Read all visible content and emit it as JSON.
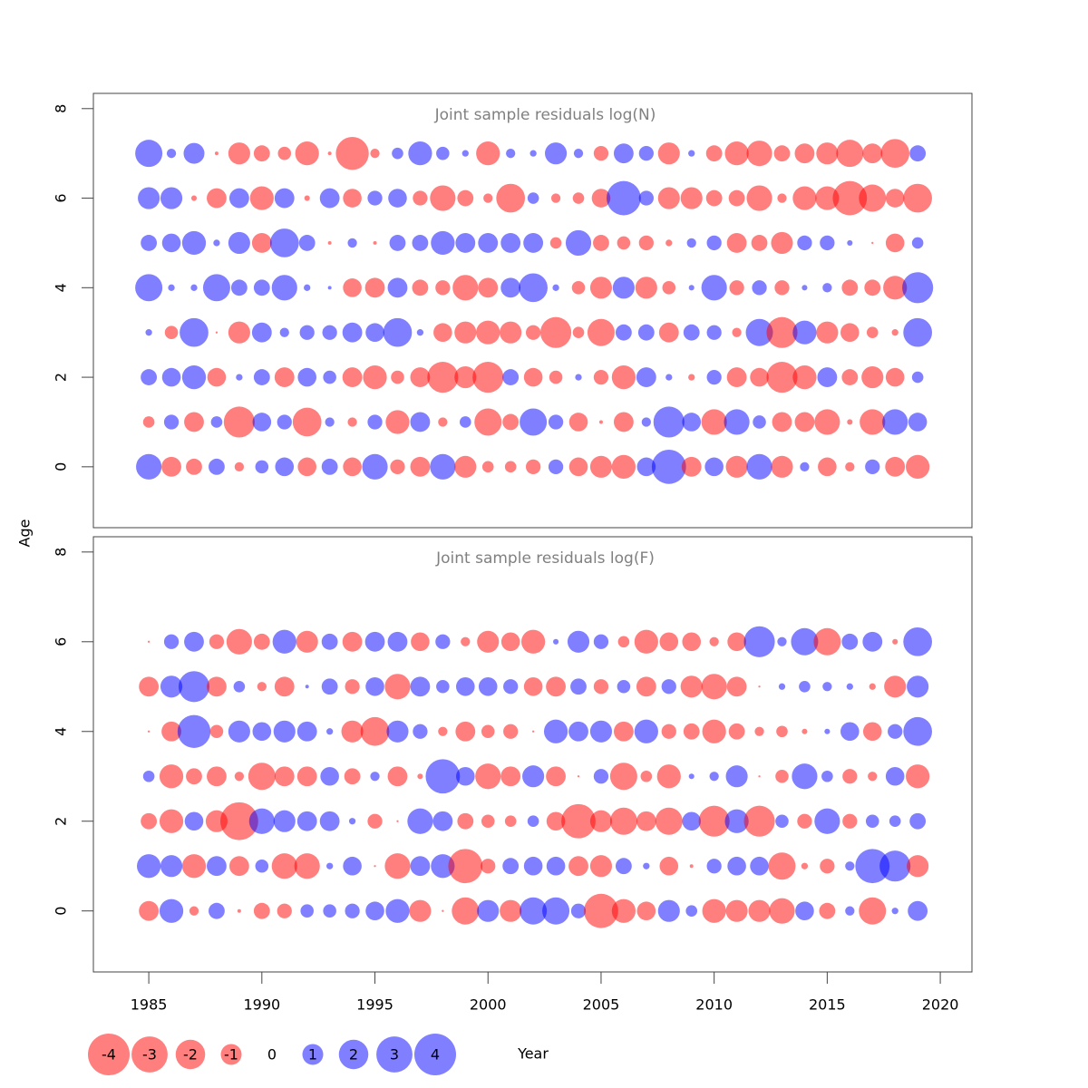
{
  "chart_data": {
    "type": "bubble",
    "xlabel": "Year",
    "ylabel": "Age",
    "colors": {
      "negative": "#ff0000",
      "positive": "#0000ff"
    },
    "legend": [
      -4,
      -3,
      -2,
      -1,
      0,
      1,
      2,
      3,
      4
    ],
    "xlim": [
      1982.55,
      2021.4
    ],
    "xticks": [
      1985,
      1990,
      1995,
      2000,
      2005,
      2010,
      2015,
      2020
    ],
    "years": [
      1985,
      1986,
      1987,
      1988,
      1989,
      1990,
      1991,
      1992,
      1993,
      1994,
      1995,
      1996,
      1997,
      1998,
      1999,
      2000,
      2001,
      2002,
      2003,
      2004,
      2005,
      2006,
      2007,
      2008,
      2009,
      2010,
      2011,
      2012,
      2013,
      2014,
      2015,
      2016,
      2017,
      2018,
      2019
    ],
    "panels": [
      {
        "title": "Joint sample residuals log(N)",
        "ylim": [
          -1.36,
          8.34
        ],
        "yticks": [
          0,
          2,
          4,
          6,
          8
        ],
        "ages": [
          0,
          1,
          2,
          3,
          4,
          5,
          6,
          7
        ],
        "values": [
          [
            1.5,
            -0.9,
            -0.6,
            0.6,
            -0.2,
            0.4,
            0.8,
            -0.8,
            0.6,
            -0.8,
            1.5,
            -0.5,
            -0.9,
            1.5,
            -1.1,
            -0.3,
            -0.3,
            -0.5,
            0.5,
            -0.8,
            -1.1,
            -1.3,
            0.8,
            2.7,
            -0.9,
            0.8,
            -1.1,
            1.5,
            -1.1,
            0.2,
            -0.8,
            -0.2,
            0.5,
            -0.9,
            -1.3
          ],
          [
            -0.3,
            0.5,
            -0.9,
            0.3,
            -2.2,
            0.8,
            0.5,
            -1.9,
            0.2,
            -0.2,
            0.5,
            -1.3,
            0.9,
            -0.2,
            0.3,
            -1.7,
            -0.6,
            1.7,
            0.5,
            -0.8,
            -0.03,
            -0.9,
            0.2,
            2.2,
            0.8,
            -1.5,
            1.5,
            0.4,
            -0.9,
            -0.9,
            -1.5,
            -0.07,
            -1.5,
            1.5,
            0.8
          ],
          [
            0.6,
            0.8,
            1.3,
            -0.8,
            0.1,
            0.6,
            -0.9,
            0.8,
            0.4,
            -0.9,
            -1.3,
            -0.4,
            -0.9,
            -2.2,
            -1.1,
            -2.2,
            0.6,
            -0.8,
            -0.4,
            0.1,
            -0.5,
            -1.3,
            0.9,
            0.1,
            -0.1,
            0.5,
            -0.9,
            -0.8,
            -2.2,
            -1.3,
            0.9,
            -0.6,
            -1.1,
            -0.8,
            0.3
          ],
          [
            0.1,
            -0.4,
            1.9,
            -0.01,
            -1.1,
            0.9,
            0.2,
            0.5,
            0.5,
            0.9,
            0.8,
            1.9,
            0.1,
            -0.8,
            -1.1,
            -1.3,
            -1.1,
            -0.5,
            -2.2,
            -0.3,
            -1.7,
            0.6,
            0.6,
            -0.9,
            0.6,
            0.5,
            -0.2,
            1.7,
            -2.2,
            1.3,
            -1.1,
            -0.8,
            -0.3,
            -0.1,
            1.9
          ],
          [
            1.7,
            0.1,
            0.1,
            1.7,
            0.6,
            0.6,
            1.5,
            0.1,
            0.03,
            -0.8,
            -0.9,
            0.9,
            -0.6,
            -0.5,
            -1.5,
            -0.9,
            0.9,
            1.9,
            0.1,
            -0.4,
            -1.1,
            1.1,
            -1.1,
            -0.4,
            0.07,
            1.5,
            -0.5,
            0.5,
            -0.5,
            0.07,
            0.2,
            -0.6,
            -0.6,
            -1.3,
            2.2
          ],
          [
            0.6,
            0.8,
            1.3,
            0.1,
            1.1,
            -0.9,
            1.9,
            0.6,
            -0.03,
            0.2,
            -0.03,
            0.6,
            0.6,
            1.3,
            0.9,
            0.9,
            0.9,
            0.9,
            -0.3,
            1.5,
            -0.6,
            -0.4,
            -0.5,
            -0.1,
            0.2,
            0.5,
            -0.9,
            -0.6,
            -1.1,
            0.5,
            0.5,
            0.07,
            -0.01,
            -0.8,
            0.3
          ],
          [
            1.1,
            1.1,
            -0.07,
            -0.9,
            0.9,
            -1.3,
            0.9,
            -0.07,
            0.9,
            -0.8,
            0.5,
            0.8,
            -0.5,
            -1.5,
            -0.6,
            -0.2,
            -1.9,
            0.3,
            -0.2,
            -0.3,
            -0.8,
            2.7,
            0.5,
            -1.1,
            -1.1,
            -0.6,
            -0.6,
            -1.5,
            -0.2,
            -1.3,
            -1.3,
            -2.7,
            -1.7,
            -0.8,
            -1.9
          ],
          [
            1.7,
            0.2,
            1.0,
            -0.03,
            -1.1,
            -0.6,
            -0.4,
            -1.3,
            -0.03,
            -2.5,
            -0.2,
            0.3,
            1.3,
            0.4,
            0.1,
            -1.3,
            0.2,
            0.1,
            1.1,
            0.2,
            -0.5,
            0.9,
            0.5,
            -1.1,
            0.1,
            -0.6,
            -1.3,
            -1.5,
            -0.6,
            -0.9,
            -1.1,
            -1.7,
            -0.9,
            -1.9,
            0.6
          ]
        ]
      },
      {
        "title": "Joint sample residuals log(F)",
        "ylim": [
          -1.36,
          8.34
        ],
        "yticks": [
          0,
          2,
          4,
          6,
          8
        ],
        "ages": [
          0,
          1,
          2,
          3,
          4,
          5,
          6
        ],
        "values": [
          [
            -0.9,
            1.3,
            -0.2,
            0.6,
            -0.03,
            -0.6,
            -0.5,
            0.4,
            0.4,
            0.5,
            0.8,
            1.3,
            -1.1,
            -0.01,
            -1.7,
            1.1,
            -1.1,
            1.7,
            1.7,
            0.5,
            -2.7,
            -1.3,
            -0.8,
            1.1,
            0.3,
            -1.3,
            -1.1,
            -1.1,
            -1.5,
            0.8,
            -0.6,
            0.2,
            -1.7,
            0.1,
            0.9
          ],
          [
            1.3,
            1.1,
            -1.3,
            0.9,
            -0.9,
            0.4,
            -1.5,
            -1.5,
            0.1,
            0.8,
            -0.01,
            -1.5,
            0.9,
            1.3,
            -2.7,
            -0.5,
            0.6,
            0.8,
            0.8,
            -0.9,
            -1.1,
            0.6,
            0.1,
            -0.8,
            -0.03,
            0.5,
            0.8,
            0.8,
            -1.7,
            -0.1,
            -0.5,
            0.2,
            2.7,
            2.2,
            -1.1
          ],
          [
            -0.6,
            -1.3,
            0.8,
            -1.1,
            -3.3,
            1.5,
            1.1,
            0.9,
            0.9,
            0.1,
            -0.5,
            -0.01,
            1.5,
            0.9,
            -0.6,
            -0.4,
            -0.3,
            0.3,
            -0.8,
            -2.7,
            -1.1,
            -1.7,
            -0.9,
            -1.7,
            0.8,
            -2.2,
            1.3,
            -2.2,
            0.4,
            -0.5,
            1.5,
            -0.5,
            0.4,
            0.3,
            0.6
          ],
          [
            0.3,
            -1.3,
            -0.6,
            -0.9,
            -0.2,
            -1.7,
            -0.9,
            -0.9,
            0.8,
            -0.6,
            0.2,
            -0.9,
            -0.07,
            2.7,
            0.8,
            -1.5,
            -0.9,
            1.1,
            -0.9,
            -0.01,
            0.5,
            -1.7,
            -0.3,
            -1.3,
            0.07,
            0.2,
            1.1,
            -0.01,
            -0.4,
            1.5,
            0.3,
            -0.5,
            -0.2,
            0.8,
            -1.3
          ],
          [
            -0.01,
            -0.9,
            2.5,
            -0.4,
            1.1,
            0.8,
            1.1,
            0.9,
            0.1,
            -1.1,
            -1.9,
            1.1,
            0.5,
            -0.2,
            -0.9,
            -0.4,
            -0.5,
            -0.01,
            1.3,
            0.9,
            1.1,
            -0.9,
            1.3,
            -0.5,
            -0.6,
            -1.3,
            -0.6,
            -0.2,
            -0.3,
            -0.07,
            0.07,
            0.8,
            -0.8,
            0.5,
            1.9
          ],
          [
            -0.9,
            1.1,
            2.2,
            -0.9,
            0.3,
            -0.2,
            -0.9,
            0.03,
            0.6,
            -0.5,
            0.8,
            -1.5,
            0.9,
            0.4,
            0.8,
            0.8,
            0.5,
            -0.8,
            -0.9,
            0.6,
            -0.5,
            0.4,
            -0.9,
            0.5,
            -1.1,
            -1.5,
            -0.9,
            -0.01,
            0.1,
            0.3,
            0.2,
            0.1,
            -0.1,
            -1.1,
            1.1
          ],
          [
            -0.01,
            0.5,
            0.9,
            -0.5,
            -1.5,
            -0.6,
            1.3,
            -1.1,
            0.6,
            -0.9,
            0.9,
            0.9,
            -0.8,
            0.5,
            -0.2,
            -1.1,
            -0.8,
            -1.3,
            0.07,
            1.1,
            0.5,
            -0.3,
            -1.3,
            -0.8,
            -0.8,
            -0.2,
            -0.8,
            2.2,
            0.2,
            1.7,
            -1.7,
            0.6,
            0.9,
            -0.07,
            1.9
          ]
        ]
      }
    ]
  }
}
